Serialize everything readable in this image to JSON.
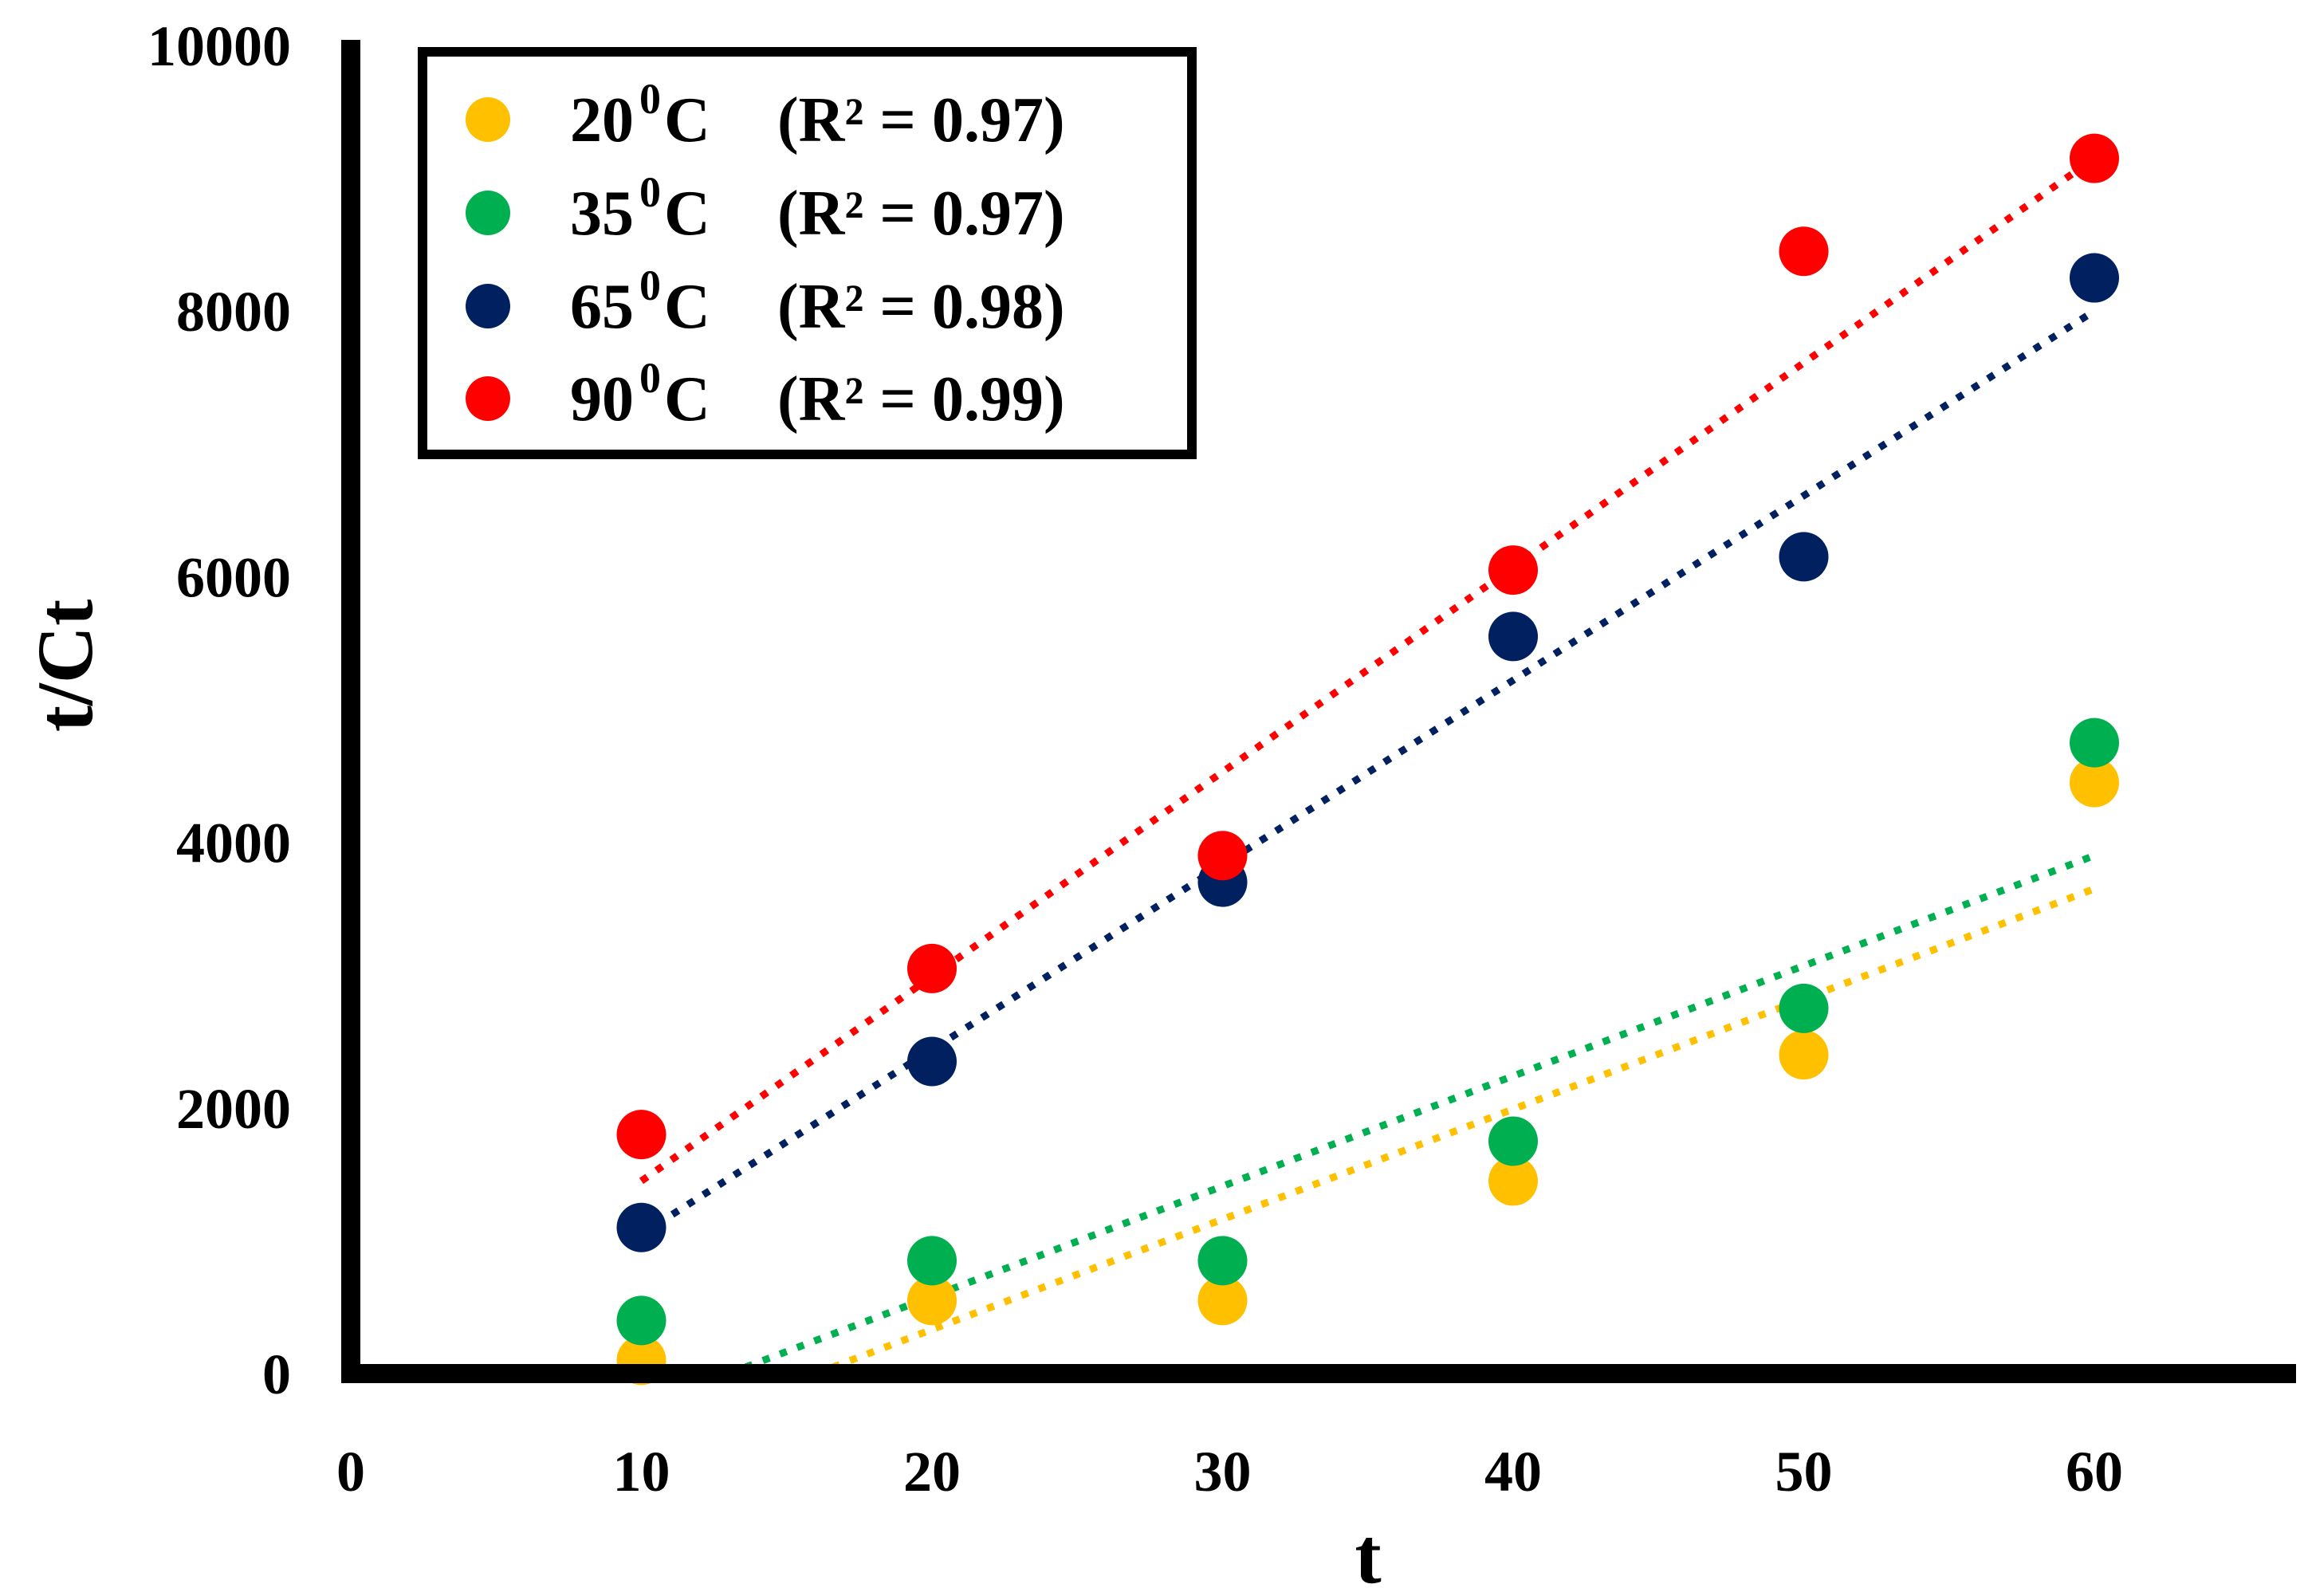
{
  "chart_data": {
    "type": "scatter",
    "title": "",
    "xlabel": "t",
    "ylabel": "t/Ct",
    "xlim": [
      0,
      66
    ],
    "ylim": [
      0,
      10000
    ],
    "x_ticks": [
      "0",
      "10",
      "20",
      "30",
      "40",
      "50",
      "60"
    ],
    "y_ticks": [
      "0",
      "2000",
      "4000",
      "6000",
      "8000",
      "10000"
    ],
    "grid": false,
    "legend_position": "top-left",
    "x": [
      10,
      20,
      30,
      40,
      50,
      60
    ],
    "series": [
      {
        "name": "20",
        "unit": "C",
        "degree": "0",
        "r2_label": "(R² = 0.97)",
        "color": "#ffc000",
        "values": [
          100,
          550,
          550,
          1450,
          2400,
          4450
        ],
        "trendline": {
          "x": [
            16,
            60
          ],
          "y": [
            0,
            3650
          ]
        }
      },
      {
        "name": "35",
        "unit": "C",
        "degree": "0",
        "r2_label": "(R² = 0.97)",
        "color": "#00b050",
        "values": [
          400,
          850,
          850,
          1750,
          2750,
          4750
        ],
        "trendline": {
          "x": [
            13,
            60
          ],
          "y": [
            0,
            3900
          ]
        }
      },
      {
        "name": "65",
        "unit": "C",
        "degree": "0",
        "r2_label": "(R² =  0.98)",
        "color": "#002060",
        "values": [
          1100,
          2350,
          3700,
          5550,
          6150,
          8250
        ],
        "trendline": {
          "x": [
            10,
            60
          ],
          "y": [
            1050,
            8000
          ]
        }
      },
      {
        "name": "90",
        "unit": "C",
        "degree": "0",
        "r2_label": "(R² =  0.99)",
        "color": "#ff0000",
        "values": [
          1800,
          3050,
          3900,
          6050,
          8450,
          9150
        ],
        "trendline": {
          "x": [
            10,
            60
          ],
          "y": [
            1450,
            9150
          ]
        }
      }
    ]
  }
}
